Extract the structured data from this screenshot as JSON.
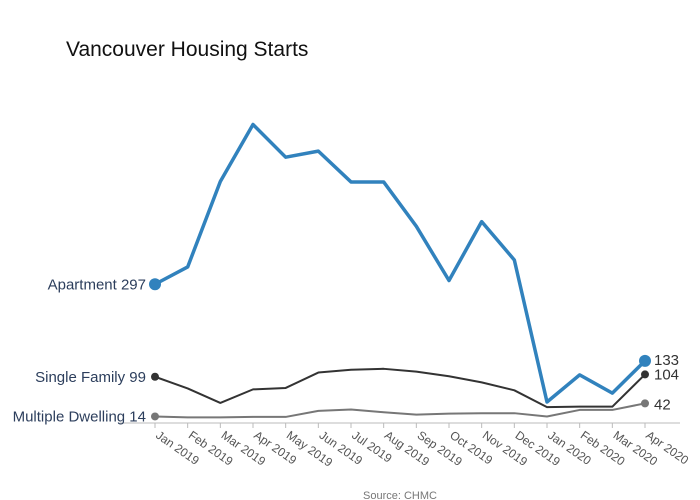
{
  "chart_data": {
    "type": "line",
    "title": "Vancouver Housing Starts",
    "source": "Source: CHMC",
    "x": [
      "Jan 2019",
      "Feb 2019",
      "Mar 2019",
      "Apr 2019",
      "May 2019",
      "Jun 2019",
      "Jul 2019",
      "Aug 2019",
      "Sep 2019",
      "Oct 2019",
      "Nov 2019",
      "Dec 2019",
      "Jan 2020",
      "Feb 2020",
      "Mar 2020",
      "Apr 2020"
    ],
    "ylim": [
      0,
      700
    ],
    "series": [
      {
        "name": "Apartment",
        "start_label": "Apartment 297",
        "end_label": "133",
        "color": "#3182bd",
        "values": [
          297,
          334,
          517,
          639,
          569,
          582,
          516,
          516,
          421,
          305,
          431,
          349,
          45,
          103,
          64,
          133
        ]
      },
      {
        "name": "Single Family",
        "start_label": "Single Family 99",
        "end_label": "104",
        "color": "#333333",
        "values": [
          99,
          74,
          43,
          72,
          75,
          108,
          114,
          116,
          110,
          100,
          87,
          70,
          34,
          35,
          35,
          104
        ]
      },
      {
        "name": "Multiple Dwelling",
        "start_label": "Multiple Dwelling 14",
        "end_label": "42",
        "color": "#777777",
        "values": [
          14,
          12,
          12,
          13,
          13,
          26,
          29,
          23,
          18,
          20,
          21,
          21,
          14,
          28,
          28,
          42
        ]
      }
    ],
    "grid": false,
    "legend": "none"
  }
}
